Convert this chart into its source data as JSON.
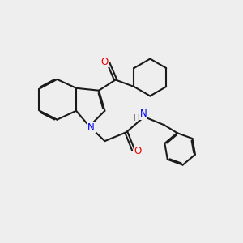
{
  "bg_color": "#eeeeee",
  "bond_color": "#1a1a1a",
  "N_color": "#0000ee",
  "O_color": "#ee0000",
  "H_color": "#808080",
  "line_width": 1.5,
  "dbo": 0.045,
  "xlim": [
    0,
    10
  ],
  "ylim": [
    0,
    10
  ]
}
